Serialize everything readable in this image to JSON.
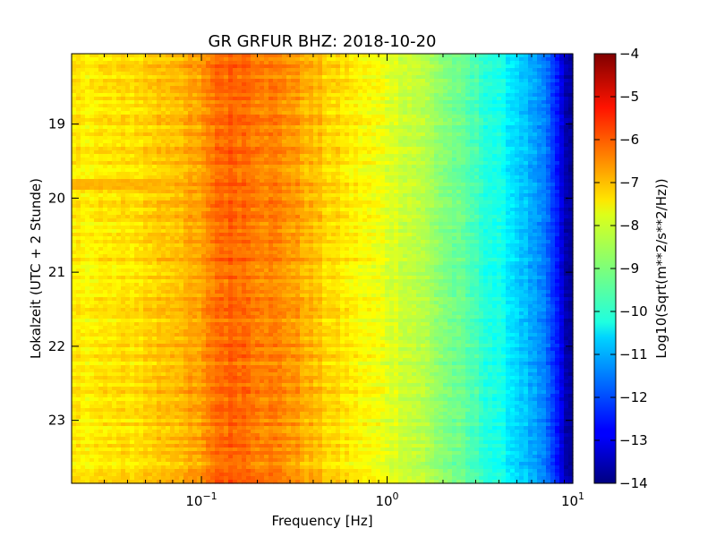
{
  "chart_data": {
    "type": "heatmap",
    "title": "GR GRFUR BHZ: 2018-10-20",
    "xlabel": "Frequency [Hz]",
    "ylabel": "Lokalzeit (UTC + 2 Stunde)",
    "x_scale": "log",
    "xlim": [
      0.02,
      10
    ],
    "ylim": [
      18.05,
      23.85
    ],
    "y_inverted": true,
    "x_ticks": [
      {
        "value": 0.1,
        "base": "10",
        "exp": "−1"
      },
      {
        "value": 1,
        "base": "10",
        "exp": "0"
      },
      {
        "value": 10,
        "base": "10",
        "exp": "1"
      }
    ],
    "y_ticks": [
      {
        "value": 19,
        "label": "19"
      },
      {
        "value": 20,
        "label": "20"
      },
      {
        "value": 21,
        "label": "21"
      },
      {
        "value": 22,
        "label": "22"
      },
      {
        "value": 23,
        "label": "23"
      }
    ],
    "colorbar": {
      "label": "Log10(Sqrt(m**2/s**2/Hz))",
      "vmin": -14,
      "vmax": -4,
      "ticks": [
        "−4",
        "−5",
        "−6",
        "−7",
        "−8",
        "−9",
        "−10",
        "−11",
        "−12",
        "−13",
        "−14"
      ],
      "colormap": "jet"
    },
    "spectrum_profile": {
      "frequency_hz": [
        0.02,
        0.04,
        0.06,
        0.08,
        0.1,
        0.12,
        0.15,
        0.2,
        0.3,
        0.4,
        0.5,
        0.7,
        1,
        1.5,
        2,
        3,
        4,
        5,
        6,
        7,
        8,
        9,
        10
      ],
      "level": [
        -7.6,
        -7.5,
        -7.2,
        -7.0,
        -6.9,
        -6.3,
        -6.2,
        -6.4,
        -6.7,
        -7.1,
        -7.4,
        -7.7,
        -8.0,
        -8.4,
        -8.9,
        -9.6,
        -10.1,
        -10.6,
        -11.1,
        -11.6,
        -12.3,
        -13.4,
        -13.9
      ]
    },
    "band_event": {
      "time": 19.82,
      "level_below_0.06hz": -7.0
    }
  }
}
